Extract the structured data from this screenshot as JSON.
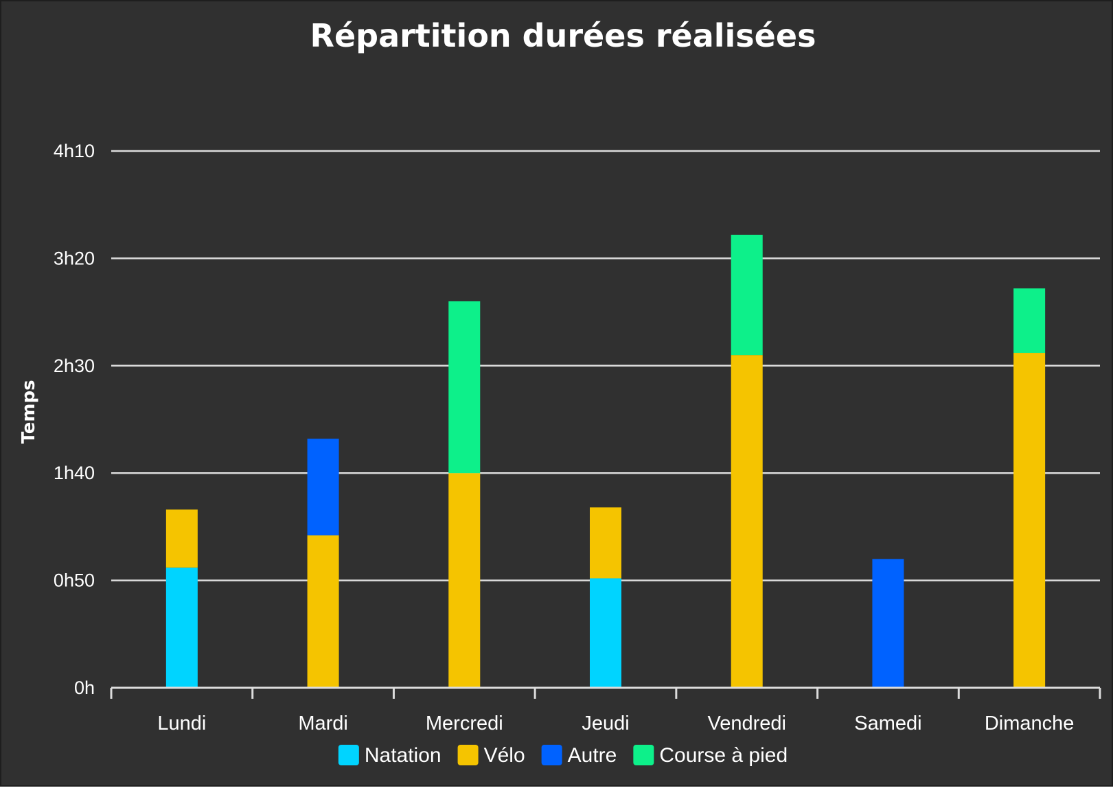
{
  "chart_data": {
    "type": "bar",
    "stacked": true,
    "title": "Répartition durées réalisées",
    "xlabel": "",
    "ylabel": "Temps",
    "ylim": [
      0,
      250
    ],
    "y_unit": "minutes",
    "y_ticks": [
      {
        "value": 0,
        "label": "0h"
      },
      {
        "value": 50,
        "label": "0h50"
      },
      {
        "value": 100,
        "label": "1h40"
      },
      {
        "value": 150,
        "label": "2h30"
      },
      {
        "value": 200,
        "label": "3h20"
      },
      {
        "value": 250,
        "label": "4h10"
      }
    ],
    "grid": true,
    "legend_position": "bottom",
    "categories": [
      "Lundi",
      "Mardi",
      "Mercredi",
      "Jeudi",
      "Vendredi",
      "Samedi",
      "Dimanche"
    ],
    "series": [
      {
        "name": "Natation",
        "color": "#00d4ff",
        "values": [
          56,
          0,
          0,
          51,
          0,
          0,
          0
        ]
      },
      {
        "name": "Vélo",
        "color": "#f5c400",
        "values": [
          27,
          71,
          100,
          33,
          155,
          0,
          156
        ]
      },
      {
        "name": "Autre",
        "color": "#0062ff",
        "values": [
          0,
          45,
          0,
          0,
          0,
          60,
          0
        ]
      },
      {
        "name": "Course à pied",
        "color": "#0df08a",
        "values": [
          0,
          0,
          80,
          0,
          56,
          0,
          30
        ]
      }
    ]
  }
}
